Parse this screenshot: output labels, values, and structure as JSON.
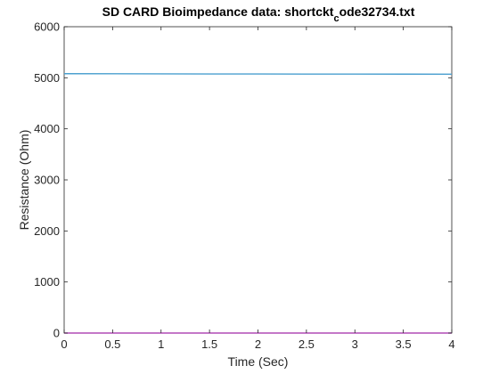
{
  "chart_data": {
    "type": "line",
    "title": "SD CARD Bioimpedance data: shortckt",
    "title_subscript": "c",
    "title_suffix": "ode32734.txt",
    "xlabel": "Time (Sec)",
    "ylabel": "Resistance (Ohm)",
    "xlim": [
      0,
      4
    ],
    "ylim": [
      0,
      6000
    ],
    "xticks": [
      "0",
      "0.5",
      "1",
      "1.5",
      "2",
      "2.5",
      "3",
      "3.5",
      "4"
    ],
    "yticks": [
      "0",
      "1000",
      "2000",
      "3000",
      "4000",
      "5000",
      "6000"
    ],
    "grid": false,
    "series": [
      {
        "color": "#4a9fcf",
        "x": [
          0,
          0.5,
          1,
          1.5,
          2,
          2.5,
          3,
          3.5,
          4
        ],
        "y": [
          5080,
          5078,
          5077,
          5075,
          5074,
          5073,
          5072,
          5071,
          5070
        ]
      },
      {
        "color": "#b04ab5",
        "x": [
          0,
          4
        ],
        "y": [
          0,
          0
        ]
      }
    ]
  }
}
